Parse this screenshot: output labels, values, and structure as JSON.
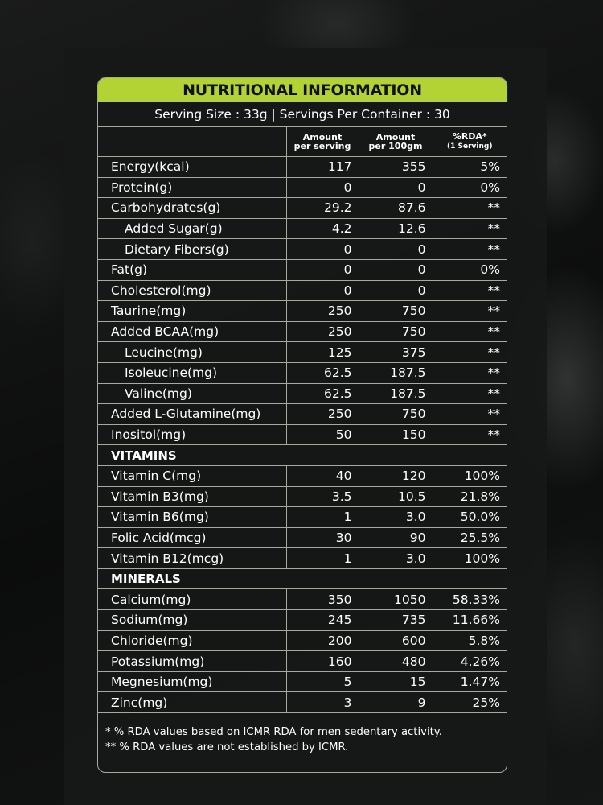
{
  "title": "NUTRITIONAL INFORMATION",
  "serving": "Serving Size : 33g  |  Servings Per Container : 30",
  "columns": {
    "per_serving_line1": "Amount",
    "per_serving_line2": "per serving",
    "per_100_line1": "Amount",
    "per_100_line2": "per 100gm",
    "rda_line1": "%RDA*",
    "rda_line2": "(1 Serving)"
  },
  "rows": [
    {
      "name": "Energy(kcal)",
      "serving": "117",
      "per100": "355",
      "rda": "5%",
      "indent": false
    },
    {
      "name": "Protein(g)",
      "serving": "0",
      "per100": "0",
      "rda": "0%",
      "indent": false
    },
    {
      "name": "Carbohydrates(g)",
      "serving": "29.2",
      "per100": "87.6",
      "rda": "**",
      "indent": false
    },
    {
      "name": "Added Sugar(g)",
      "serving": "4.2",
      "per100": "12.6",
      "rda": "**",
      "indent": true
    },
    {
      "name": "Dietary Fibers(g)",
      "serving": "0",
      "per100": "0",
      "rda": "**",
      "indent": true
    },
    {
      "name": "Fat(g)",
      "serving": "0",
      "per100": "0",
      "rda": "0%",
      "indent": false
    },
    {
      "name": "Cholesterol(mg)",
      "serving": "0",
      "per100": "0",
      "rda": "**",
      "indent": false
    },
    {
      "name": "Taurine(mg)",
      "serving": "250",
      "per100": "750",
      "rda": "**",
      "indent": false
    },
    {
      "name": "Added BCAA(mg)",
      "serving": "250",
      "per100": "750",
      "rda": "**",
      "indent": false
    },
    {
      "name": "Leucine(mg)",
      "serving": "125",
      "per100": "375",
      "rda": "**",
      "indent": true
    },
    {
      "name": "Isoleucine(mg)",
      "serving": "62.5",
      "per100": "187.5",
      "rda": "**",
      "indent": true
    },
    {
      "name": "Valine(mg)",
      "serving": "62.5",
      "per100": "187.5",
      "rda": "**",
      "indent": true
    },
    {
      "name": "Added L-Glutamine(mg)",
      "serving": "250",
      "per100": "750",
      "rda": "**",
      "indent": false
    },
    {
      "name": "Inositol(mg)",
      "serving": "50",
      "per100": "150",
      "rda": "**",
      "indent": false
    }
  ],
  "vitamins_label": "VITAMINS",
  "vitamins": [
    {
      "name": "Vitamin C(mg)",
      "serving": "40",
      "per100": "120",
      "rda": "100%"
    },
    {
      "name": "Vitamin B3(mg)",
      "serving": "3.5",
      "per100": "10.5",
      "rda": "21.8%"
    },
    {
      "name": "Vitamin B6(mg)",
      "serving": "1",
      "per100": "3.0",
      "rda": "50.0%"
    },
    {
      "name": "Folic Acid(mcg)",
      "serving": "30",
      "per100": "90",
      "rda": "25.5%"
    },
    {
      "name": "Vitamin B12(mcg)",
      "serving": "1",
      "per100": "3.0",
      "rda": "100%"
    }
  ],
  "minerals_label": "MINERALS",
  "minerals": [
    {
      "name": "Calcium(mg)",
      "serving": "350",
      "per100": "1050",
      "rda": "58.33%"
    },
    {
      "name": "Sodium(mg)",
      "serving": "245",
      "per100": "735",
      "rda": "11.66%"
    },
    {
      "name": "Chloride(mg)",
      "serving": "200",
      "per100": "600",
      "rda": "5.8%"
    },
    {
      "name": "Potassium(mg)",
      "serving": "160",
      "per100": "480",
      "rda": "4.26%"
    },
    {
      "name": "Megnesium(mg)",
      "serving": "5",
      "per100": "15",
      "rda": "1.47%"
    },
    {
      "name": "Zinc(mg)",
      "serving": "3",
      "per100": "9",
      "rda": "25%"
    }
  ],
  "footnotes": [
    "* % RDA values based on ICMR RDA for men sedentary activity.",
    "** % RDA values are not established by ICMR."
  ],
  "colors": {
    "accent": "#b3d334",
    "border": "#a7ab9f",
    "background": "#0c0d0d"
  }
}
